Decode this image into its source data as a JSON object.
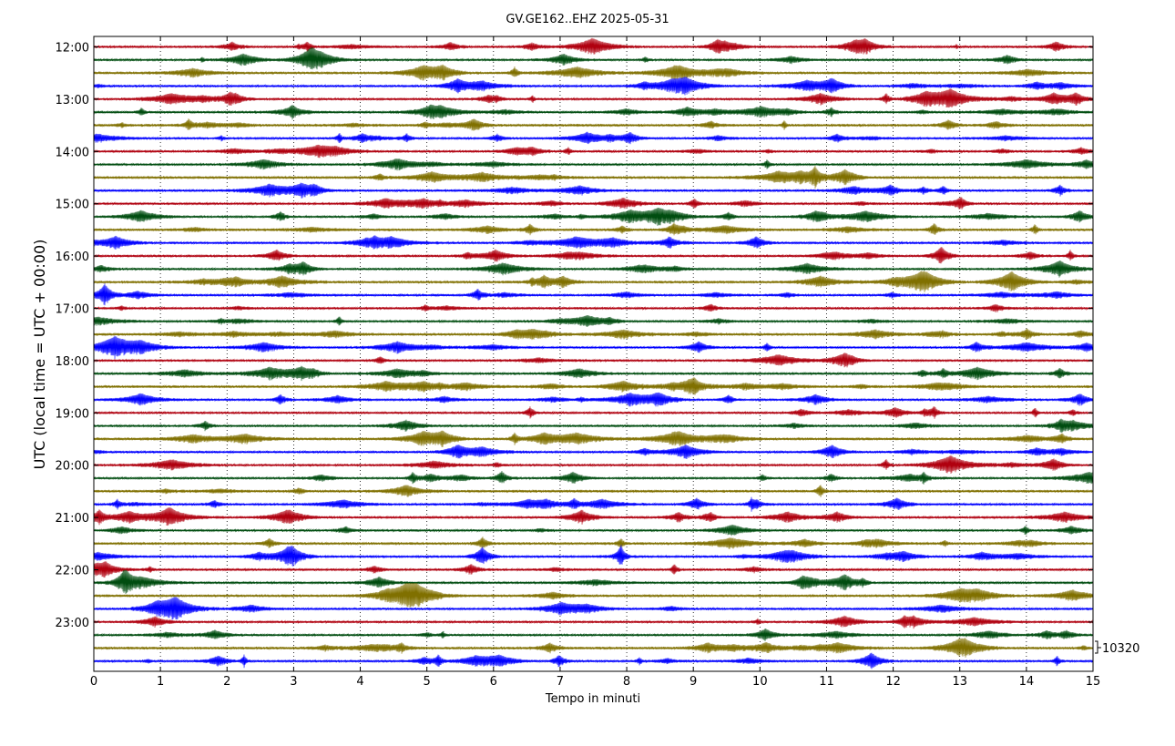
{
  "chart_data": {
    "type": "line",
    "title": "GV.GE162..EHZ 2025-05-31",
    "xlabel": "Tempo in minuti",
    "ylabel": "UTC (local time = UTC + 00:00)",
    "xlim": [
      0,
      15
    ],
    "x_ticks": [
      "0",
      "1",
      "2",
      "3",
      "4",
      "5",
      "6",
      "7",
      "8",
      "9",
      "10",
      "11",
      "12",
      "13",
      "14",
      "15"
    ],
    "hour_labels": [
      "12:00",
      "13:00",
      "14:00",
      "15:00",
      "16:00",
      "17:00",
      "18:00",
      "19:00",
      "20:00",
      "21:00",
      "22:00",
      "23:00"
    ],
    "traces_per_hour": 4,
    "trace_count": 48,
    "first_trace_start": "12:00",
    "trace_duration_minutes": 15,
    "colors": [
      "#b0000f",
      "#004d10",
      "#807000",
      "#0000ff"
    ],
    "grid": "vertical dotted at each minute",
    "scale_label": "10320"
  }
}
